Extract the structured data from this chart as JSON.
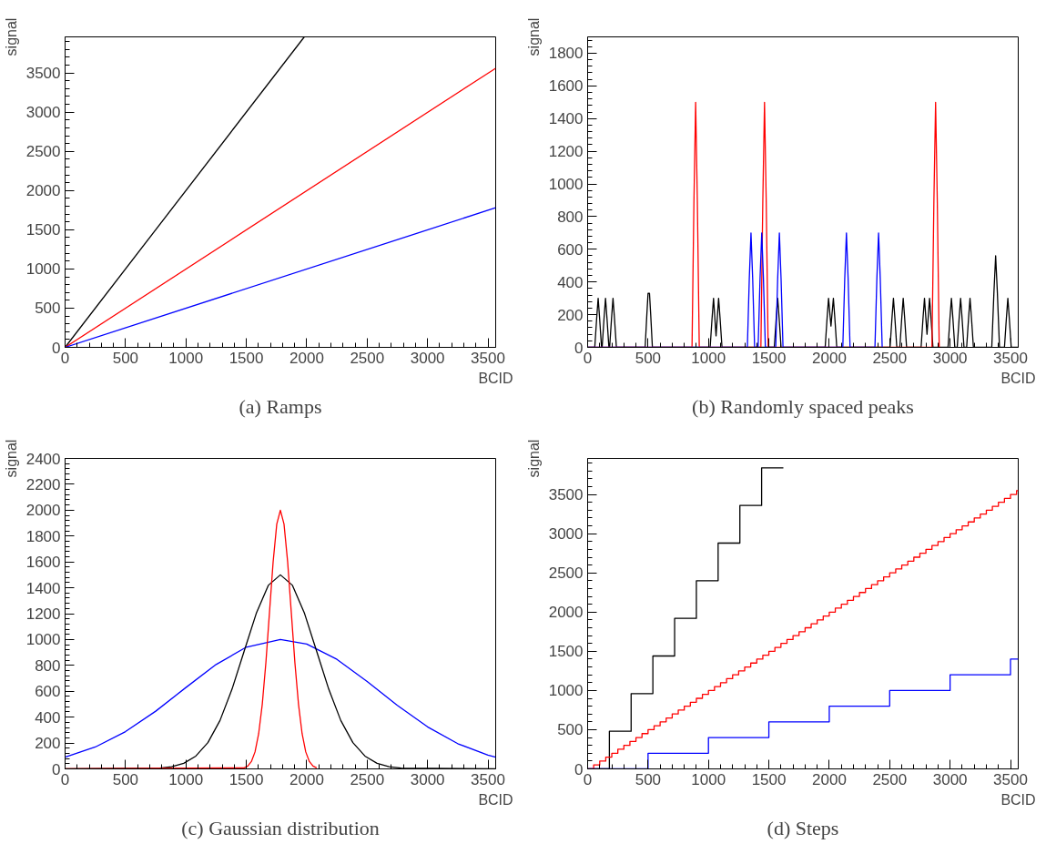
{
  "chart_data": [
    {
      "type": "line",
      "title": "(a) Ramps",
      "xlabel": "BCID",
      "ylabel": "signal",
      "xlim": [
        0,
        3564
      ],
      "ylim": [
        0,
        3960
      ],
      "xticks": [
        0,
        500,
        1000,
        1500,
        2000,
        2500,
        3000,
        3500
      ],
      "yticks": [
        0,
        500,
        1000,
        1500,
        2000,
        2500,
        3000,
        3500
      ],
      "grid": false,
      "series": [
        {
          "color": "#000000",
          "x": [
            0,
            1980
          ],
          "values": [
            0,
            3960
          ]
        },
        {
          "color": "#ff0000",
          "x": [
            0,
            3564
          ],
          "values": [
            0,
            3560
          ]
        },
        {
          "color": "#0000ff",
          "x": [
            0,
            3564
          ],
          "values": [
            0,
            1780
          ]
        }
      ]
    },
    {
      "type": "line",
      "title": "(b) Randomly spaced peaks",
      "xlabel": "BCID",
      "ylabel": "signal",
      "xlim": [
        0,
        3564
      ],
      "ylim": [
        0,
        1900
      ],
      "xticks": [
        0,
        500,
        1000,
        1500,
        2000,
        2500,
        3000,
        3500
      ],
      "yticks": [
        0,
        200,
        400,
        600,
        800,
        1000,
        1200,
        1400,
        1600,
        1800
      ],
      "grid": false,
      "series": [
        {
          "color": "#000000",
          "x": [
            0,
            59,
            75,
            87,
            99,
            115,
            120,
            136,
            148,
            160,
            176,
            182,
            198,
            210,
            222,
            238,
            476,
            490,
            500,
            512,
            522,
            536,
            1014,
            1030,
            1042,
            1063,
            1084,
            1096,
            1112,
            1545,
            1561,
            1573,
            1585,
            1601,
            1966,
            1982,
            1994,
            2014,
            2034,
            2046,
            2062,
            2503,
            2519,
            2531,
            2543,
            2559,
            2584,
            2600,
            2612,
            2624,
            2640,
            2760,
            2776,
            2788,
            2809,
            2830,
            2842,
            2858,
            2983,
            2999,
            3011,
            3023,
            3039,
            3059,
            3075,
            3087,
            3099,
            3115,
            3137,
            3153,
            3165,
            3177,
            3193,
            3345,
            3363,
            3377,
            3391,
            3409,
            3450,
            3466,
            3478,
            3490,
            3506,
            3564
          ],
          "values": [
            0,
            0,
            180,
            300,
            180,
            0,
            0,
            180,
            300,
            180,
            0,
            0,
            180,
            300,
            180,
            0,
            0,
            200,
            330,
            330,
            200,
            0,
            0,
            180,
            300,
            70,
            300,
            180,
            0,
            0,
            180,
            300,
            180,
            0,
            0,
            180,
            300,
            130,
            300,
            180,
            0,
            0,
            180,
            300,
            180,
            0,
            0,
            180,
            300,
            180,
            0,
            0,
            180,
            300,
            80,
            300,
            180,
            0,
            0,
            180,
            300,
            180,
            0,
            0,
            180,
            300,
            180,
            0,
            0,
            180,
            300,
            180,
            0,
            0,
            340,
            560,
            340,
            0,
            0,
            180,
            300,
            180,
            0,
            0
          ]
        },
        {
          "color": "#ff0000",
          "x": [
            0,
            864,
            880,
            894,
            908,
            924,
            1434,
            1450,
            1464,
            1478,
            1494,
            2850,
            2866,
            2880,
            2894,
            2910
          ],
          "values": [
            0,
            0,
            900,
            1500,
            900,
            0,
            0,
            900,
            1500,
            900,
            0,
            0,
            900,
            1500,
            900,
            0
          ]
        },
        {
          "color": "#0000ff",
          "x": [
            0,
            1322,
            1338,
            1352,
            1366,
            1382,
            1411,
            1427,
            1441,
            1455,
            1471,
            1557,
            1573,
            1587,
            1601,
            1617,
            2112,
            2128,
            2142,
            2156,
            2172,
            2378,
            2394,
            2408,
            2422,
            2438
          ],
          "values": [
            0,
            0,
            420,
            700,
            420,
            0,
            0,
            420,
            700,
            420,
            0,
            0,
            420,
            700,
            420,
            0,
            0,
            420,
            700,
            420,
            0,
            0,
            420,
            700,
            420,
            0
          ]
        }
      ]
    },
    {
      "type": "line",
      "title": "(c) Gaussian distribution",
      "xlabel": "BCID",
      "ylabel": "signal",
      "xlim": [
        0,
        3564
      ],
      "ylim": [
        0,
        2400
      ],
      "xticks": [
        0,
        500,
        1000,
        1500,
        2000,
        2500,
        3000,
        3500
      ],
      "yticks": [
        0,
        200,
        400,
        600,
        800,
        1000,
        1200,
        1400,
        1600,
        1800,
        2000,
        2200,
        2400
      ],
      "grid": false,
      "series": [
        {
          "color": "#0000ff",
          "x": [
            0,
            250,
            500,
            750,
            1000,
            1250,
            1500,
            1782,
            2000,
            2250,
            2500,
            2750,
            3000,
            3250,
            3500,
            3564
          ],
          "values": [
            90,
            169,
            288,
            446,
            629,
            807,
            941,
            1000,
            965,
            847,
            676,
            491,
            325,
            195,
            107,
            90
          ]
        },
        {
          "color": "#000000",
          "x": [
            0,
            782,
            882,
            982,
            1082,
            1182,
            1282,
            1382,
            1482,
            1582,
            1682,
            1782,
            1882,
            1982,
            2082,
            2182,
            2282,
            2382,
            2482,
            2582,
            2682,
            2782,
            3564
          ],
          "values": [
            0,
            6,
            17,
            43,
            99,
            203,
            374,
            617,
            910,
            1201,
            1419,
            1500,
            1419,
            1201,
            910,
            617,
            374,
            203,
            99,
            43,
            17,
            6,
            0
          ]
        },
        {
          "color": "#ff0000",
          "x": [
            0,
            1482,
            1512,
            1542,
            1572,
            1602,
            1632,
            1662,
            1692,
            1722,
            1752,
            1782,
            1812,
            1842,
            1872,
            1902,
            1932,
            1962,
            1992,
            2022,
            2052,
            2082
          ],
          "values": [
            0,
            8,
            22,
            57,
            131,
            271,
            499,
            822,
            1213,
            1601,
            1892,
            2000,
            1892,
            1601,
            1213,
            822,
            499,
            271,
            131,
            57,
            22,
            8
          ]
        }
      ]
    },
    {
      "type": "step",
      "title": "(d) Steps",
      "xlabel": "BCID",
      "ylabel": "signal",
      "xlim": [
        0,
        3564
      ],
      "ylim": [
        0,
        3960
      ],
      "xticks": [
        0,
        500,
        1000,
        1500,
        2000,
        2500,
        3000,
        3500
      ],
      "yticks": [
        0,
        500,
        1000,
        1500,
        2000,
        2500,
        3000,
        3500
      ],
      "grid": false,
      "series": [
        {
          "color": "#000000",
          "x": [
            0,
            180,
            360,
            540,
            720,
            900,
            1080,
            1260,
            1440,
            1620
          ],
          "values": [
            0,
            480,
            960,
            1440,
            1920,
            2400,
            2880,
            3360,
            3840,
            3840
          ]
        },
        {
          "color": "#ff0000",
          "x": [
            0,
            50,
            100,
            150,
            200,
            250,
            300,
            350,
            400,
            450,
            500,
            550,
            600,
            650,
            700,
            750,
            800,
            850,
            900,
            950,
            1000,
            1050,
            1100,
            1150,
            1200,
            1250,
            1300,
            1350,
            1400,
            1450,
            1500,
            1550,
            1600,
            1650,
            1700,
            1750,
            1800,
            1850,
            1900,
            1950,
            2000,
            2050,
            2100,
            2150,
            2200,
            2250,
            2300,
            2350,
            2400,
            2450,
            2500,
            2550,
            2600,
            2650,
            2700,
            2750,
            2800,
            2850,
            2900,
            2950,
            3000,
            3050,
            3100,
            3150,
            3200,
            3250,
            3300,
            3350,
            3400,
            3450,
            3500,
            3550,
            3564
          ],
          "values": [
            0,
            50,
            100,
            150,
            200,
            250,
            300,
            350,
            400,
            450,
            500,
            550,
            600,
            650,
            700,
            750,
            800,
            850,
            900,
            950,
            1000,
            1050,
            1100,
            1150,
            1200,
            1250,
            1300,
            1350,
            1400,
            1450,
            1500,
            1550,
            1600,
            1650,
            1700,
            1750,
            1800,
            1850,
            1900,
            1950,
            2000,
            2050,
            2100,
            2150,
            2200,
            2250,
            2300,
            2350,
            2400,
            2450,
            2500,
            2550,
            2600,
            2650,
            2700,
            2750,
            2800,
            2850,
            2900,
            2950,
            3000,
            3050,
            3100,
            3150,
            3200,
            3250,
            3300,
            3350,
            3400,
            3450,
            3500,
            3550,
            3550
          ]
        },
        {
          "color": "#0000ff",
          "x": [
            0,
            500,
            1000,
            1500,
            2000,
            2500,
            3000,
            3500,
            3564
          ],
          "values": [
            0,
            200,
            400,
            600,
            800,
            1000,
            1200,
            1400,
            1400
          ]
        }
      ]
    }
  ]
}
